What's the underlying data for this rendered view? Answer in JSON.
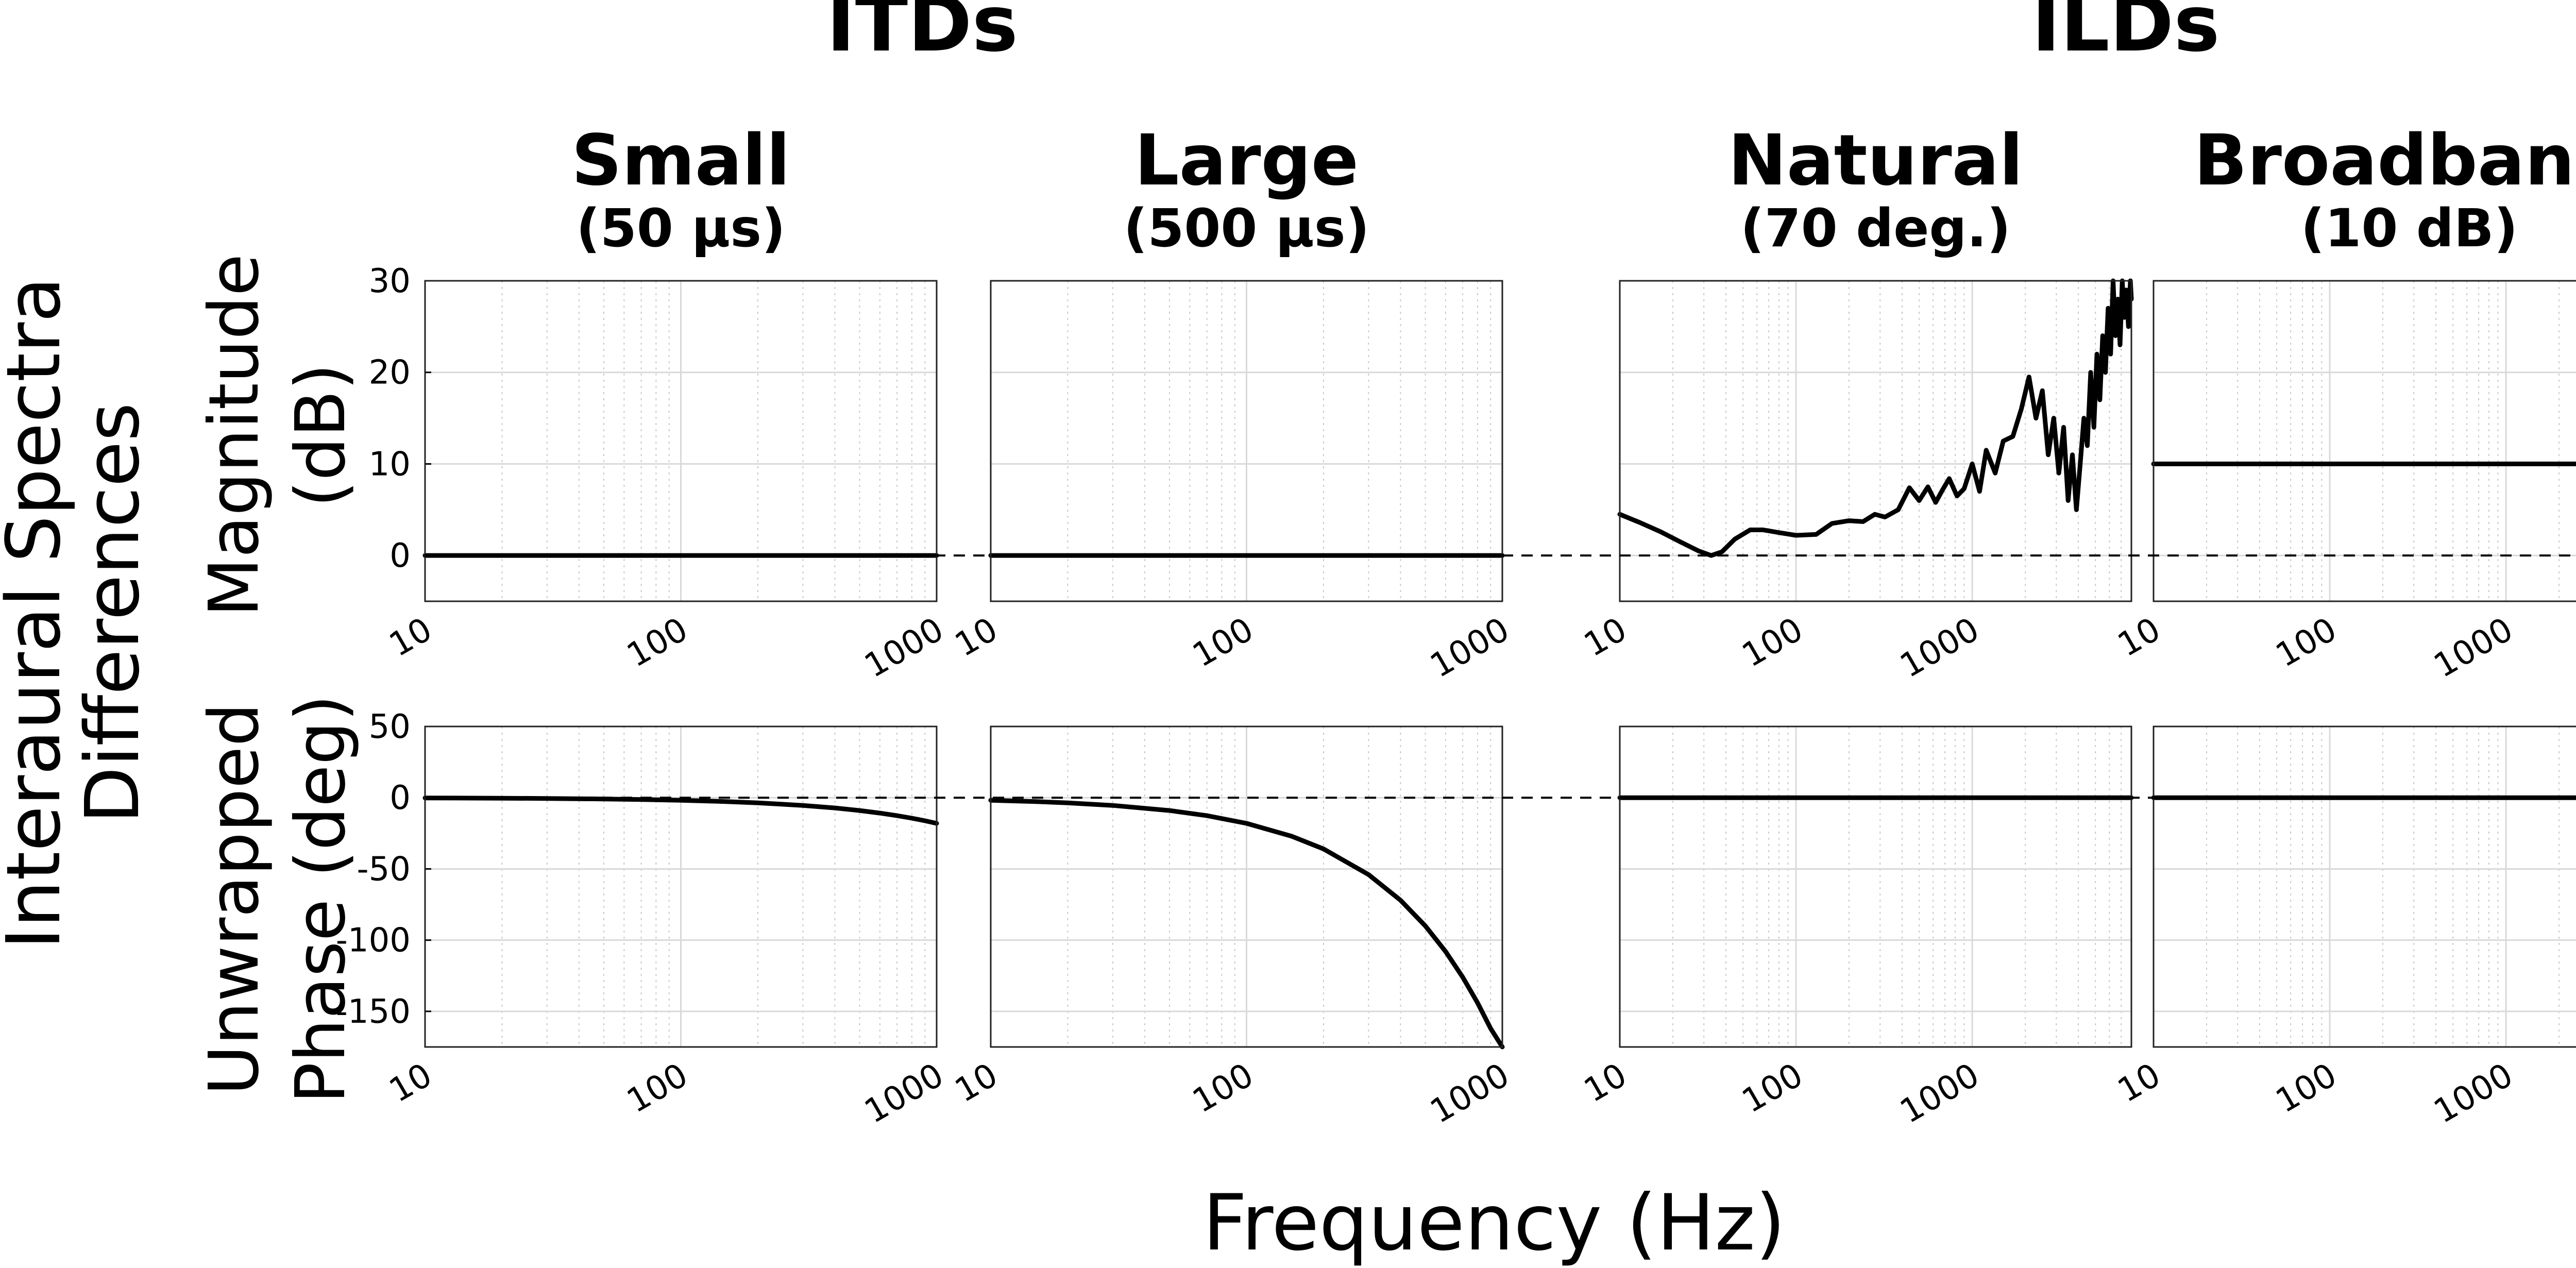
{
  "figure": {
    "group_titles": [
      "ITDs",
      "ILDs"
    ],
    "ylabel": [
      "Interaural Spectra",
      "Differences"
    ],
    "xlabel": "Frequency (Hz)",
    "row_labels": [
      [
        "Magnitude",
        "(dB)"
      ],
      [
        "Unwrapped",
        "Phase (deg)"
      ]
    ]
  },
  "chart_data": [
    {
      "type": "line",
      "panel": "Small (50 μs) – Magnitude",
      "title": "Small",
      "subtitle": "(50 μs)",
      "xlabel": "",
      "ylabel": "Magnitude (dB)",
      "xscale": "log",
      "xlim": [
        10,
        1000
      ],
      "ylim": [
        -5,
        30
      ],
      "xticks": [
        "10",
        "100",
        "1000"
      ],
      "yticks": [
        30,
        20,
        10,
        0
      ],
      "grid": true,
      "series": [
        {
          "x": [
            10,
            1000
          ],
          "y": [
            0,
            0
          ]
        }
      ]
    },
    {
      "type": "line",
      "panel": "Large (500 μs) – Magnitude",
      "title": "Large",
      "subtitle": "(500 μs)",
      "xscale": "log",
      "xlim": [
        10,
        1000
      ],
      "ylim": [
        -5,
        30
      ],
      "xticks": [
        "10",
        "100",
        "1000"
      ],
      "yticks": [],
      "grid": true,
      "series": [
        {
          "x": [
            10,
            1000
          ],
          "y": [
            0,
            0
          ]
        }
      ]
    },
    {
      "type": "line",
      "panel": "Natural (70 deg.) – Magnitude",
      "title": "Natural",
      "subtitle": "(70 deg.)",
      "xscale": "log",
      "xlim": [
        10,
        8000
      ],
      "ylim": [
        -5,
        30
      ],
      "xticks": [
        "10",
        "100",
        "1000"
      ],
      "yticks": [],
      "grid": true,
      "series": [
        {
          "x": [
            10,
            13,
            17,
            22,
            28,
            33,
            38,
            45,
            55,
            65,
            80,
            100,
            130,
            160,
            200,
            240,
            280,
            320,
            380,
            440,
            500,
            560,
            620,
            680,
            740,
            820,
            900,
            1000,
            1100,
            1200,
            1350,
            1500,
            1700,
            1900,
            2100,
            2300,
            2500,
            2700,
            2900,
            3100,
            3300,
            3500,
            3700,
            3900,
            4100,
            4300,
            4500,
            4700,
            4900,
            5100,
            5300,
            5500,
            5700,
            5900,
            6100,
            6300,
            6500,
            6700,
            6900,
            7100,
            7300,
            7500,
            7700,
            7900,
            8000
          ],
          "y": [
            4.5,
            3.6,
            2.6,
            1.5,
            0.5,
            0.0,
            0.4,
            1.8,
            2.8,
            2.8,
            2.5,
            2.2,
            2.3,
            3.5,
            3.8,
            3.7,
            4.5,
            4.2,
            5.0,
            7.4,
            6.0,
            7.5,
            5.8,
            7.2,
            8.4,
            6.5,
            7.3,
            10.0,
            7.0,
            11.5,
            9.0,
            12.5,
            13.0,
            16.0,
            19.5,
            15.0,
            18.0,
            11.0,
            15.0,
            9.0,
            14.0,
            6.0,
            11.0,
            5.0,
            10.0,
            15.0,
            12.0,
            20.0,
            14.0,
            22.0,
            17.0,
            24.0,
            20.0,
            27.0,
            22.0,
            30.0,
            24.0,
            28.0,
            23.0,
            30.0,
            26.0,
            29.0,
            25.0,
            30.0,
            28.0
          ]
        }
      ]
    },
    {
      "type": "line",
      "panel": "Broadband (10 dB) – Magnitude",
      "title": "Broadband",
      "subtitle": "(10 dB)",
      "xscale": "log",
      "xlim": [
        10,
        8000
      ],
      "ylim": [
        -5,
        30
      ],
      "xticks": [
        "10",
        "100",
        "1000"
      ],
      "yticks": [],
      "grid": true,
      "series": [
        {
          "x": [
            10,
            8000
          ],
          "y": [
            10,
            10
          ]
        }
      ]
    },
    {
      "type": "line",
      "panel": "Small (50 μs) – Phase",
      "xscale": "log",
      "xlim": [
        10,
        1000
      ],
      "ylim": [
        -175,
        50
      ],
      "xticks": [
        "10",
        "100",
        "1000"
      ],
      "yticks": [
        50,
        0,
        -50,
        -100,
        -150
      ],
      "grid": true,
      "series": [
        {
          "x": [
            10,
            15,
            20,
            30,
            50,
            70,
            100,
            150,
            200,
            300,
            400,
            500,
            600,
            700,
            800,
            900,
            1000
          ],
          "y": [
            -0.18,
            -0.27,
            -0.36,
            -0.54,
            -0.9,
            -1.26,
            -1.8,
            -2.7,
            -3.6,
            -5.4,
            -7.2,
            -9.0,
            -10.8,
            -12.6,
            -14.4,
            -16.2,
            -18.0
          ]
        }
      ]
    },
    {
      "type": "line",
      "panel": "Large (500 μs) – Phase",
      "xscale": "log",
      "xlim": [
        10,
        1000
      ],
      "ylim": [
        -175,
        50
      ],
      "xticks": [
        "10",
        "100",
        "1000"
      ],
      "yticks": [],
      "grid": true,
      "series": [
        {
          "x": [
            10,
            15,
            20,
            30,
            50,
            70,
            100,
            150,
            200,
            300,
            400,
            500,
            600,
            700,
            800,
            900,
            1000
          ],
          "y": [
            -1.8,
            -2.7,
            -3.6,
            -5.4,
            -9.0,
            -12.6,
            -18.0,
            -27.0,
            -36.0,
            -54.0,
            -72.0,
            -90.0,
            -108.0,
            -126.0,
            -144.0,
            -162.0,
            -180.0
          ]
        }
      ]
    },
    {
      "type": "line",
      "panel": "Natural (70 deg.) – Phase",
      "xscale": "log",
      "xlim": [
        10,
        8000
      ],
      "ylim": [
        -175,
        50
      ],
      "xticks": [
        "10",
        "100",
        "1000"
      ],
      "yticks": [],
      "grid": true,
      "series": [
        {
          "x": [
            10,
            8000
          ],
          "y": [
            0,
            0
          ]
        }
      ]
    },
    {
      "type": "line",
      "panel": "Broadband (10 dB) – Phase",
      "xscale": "log",
      "xlim": [
        10,
        8000
      ],
      "ylim": [
        -175,
        50
      ],
      "xticks": [
        "10",
        "100",
        "1000"
      ],
      "yticks": [],
      "grid": true,
      "series": [
        {
          "x": [
            10,
            8000
          ],
          "y": [
            0,
            0
          ]
        }
      ]
    }
  ]
}
